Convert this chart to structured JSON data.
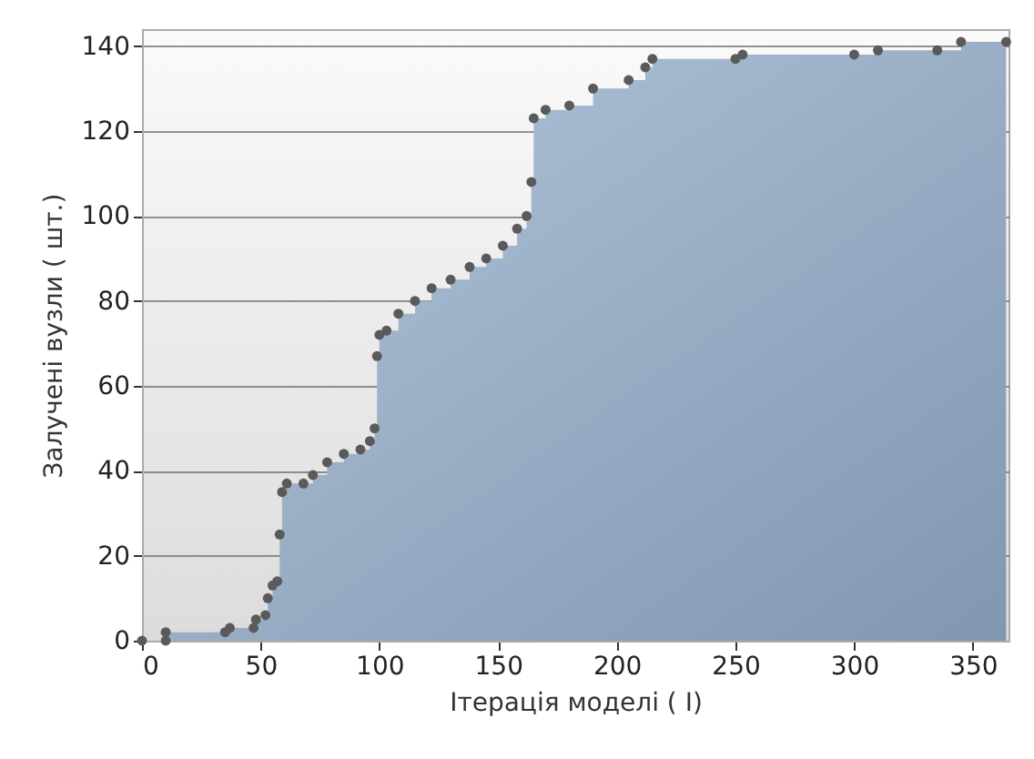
{
  "chart_data": {
    "type": "area",
    "xlabel": "Ітерація моделі  ( I)",
    "ylabel": "Залучені вузли  ( шт.)",
    "x": [
      0,
      10,
      10,
      35,
      37,
      47,
      48,
      52,
      53,
      55,
      57,
      58,
      59,
      61,
      68,
      72,
      78,
      85,
      92,
      96,
      98,
      99,
      100,
      103,
      108,
      115,
      122,
      130,
      138,
      145,
      152,
      158,
      162,
      164,
      165,
      170,
      180,
      190,
      205,
      212,
      215,
      250,
      253,
      300,
      310,
      335,
      345,
      364
    ],
    "series": [
      {
        "color": "#8197b0",
        "values": [
          0,
          0,
          2,
          2,
          3,
          3,
          5,
          6,
          10,
          13,
          14,
          25,
          35,
          37,
          37,
          39,
          42,
          44,
          45,
          47,
          50,
          67,
          72,
          73,
          77,
          80,
          83,
          85,
          88,
          90,
          93,
          97,
          100,
          108,
          123,
          125,
          126,
          130,
          132,
          135,
          137,
          137,
          138,
          138,
          139,
          139,
          141,
          141
        ]
      }
    ],
    "xlim": [
      0,
      365
    ],
    "xticks": [
      0,
      50,
      100,
      150,
      200,
      250,
      300,
      350
    ],
    "ylim": [
      0,
      144
    ],
    "yticks": [
      0,
      20,
      40,
      60,
      80,
      100,
      120,
      140
    ],
    "grid": "y",
    "marker": "circle"
  }
}
